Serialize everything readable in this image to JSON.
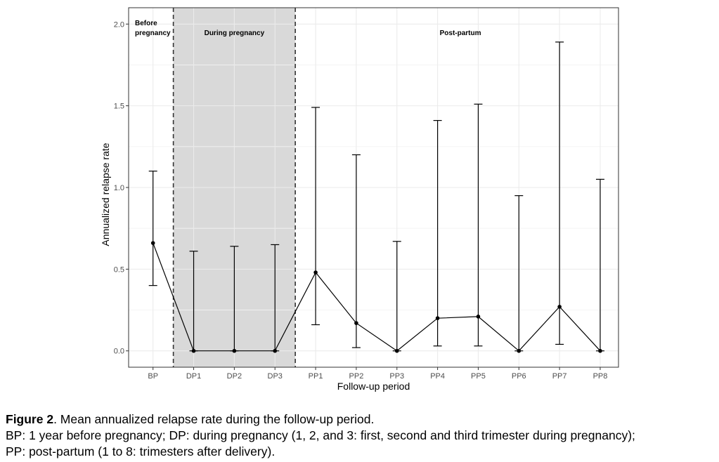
{
  "chart_data": {
    "type": "line",
    "title": "",
    "xlabel": "Follow-up period",
    "ylabel": "Annualized relapse rate",
    "categories": [
      "BP",
      "DP1",
      "DP2",
      "DP3",
      "PP1",
      "PP2",
      "PP3",
      "PP4",
      "PP5",
      "PP6",
      "PP7",
      "PP8"
    ],
    "series": [
      {
        "values": [
          0.66,
          0.0,
          0.0,
          0.0,
          0.48,
          0.17,
          0.0,
          0.2,
          0.21,
          0.0,
          0.27,
          0.0
        ],
        "lower": [
          0.4,
          0.0,
          0.0,
          0.0,
          0.16,
          0.02,
          0.0,
          0.03,
          0.03,
          0.0,
          0.04,
          0.0
        ],
        "upper": [
          1.1,
          0.61,
          0.64,
          0.65,
          1.49,
          1.2,
          0.67,
          1.41,
          1.51,
          0.95,
          1.89,
          1.05
        ]
      }
    ],
    "ylim": [
      -0.1,
      2.1
    ],
    "yticks": [
      0.0,
      0.5,
      1.0,
      1.5,
      2.0
    ],
    "ytick_labels": [
      "0.0",
      "0.5",
      "1.0",
      "1.5",
      "2.0"
    ],
    "grid": true,
    "regions": [
      {
        "label_lines": [
          "Before",
          "pregnancy"
        ]
      },
      {
        "label_lines": [
          "During pregnancy"
        ],
        "shaded": true,
        "shade_color": "#d9d9d9"
      },
      {
        "label_lines": [
          "Post-partum"
        ]
      }
    ],
    "colors": {
      "line": "#000000",
      "grid": "#ebebeb",
      "panel_border": "#333333",
      "divider": "#333333"
    }
  },
  "caption": {
    "figure_label": "Figure 2",
    "title_text": ". Mean annualized relapse rate during the follow-up period.",
    "line2": "BP: 1 year before pregnancy; DP: during pregnancy (1, 2, and 3: first, second and third trimester during pregnancy);",
    "line3": "PP: post-partum (1 to 8: trimesters after delivery)."
  }
}
